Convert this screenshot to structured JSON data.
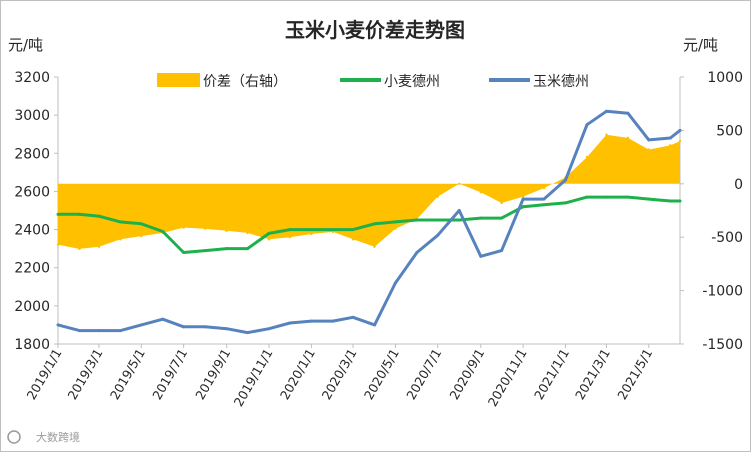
{
  "chart_data": {
    "type": "line",
    "title": "玉米小麦价差走势图",
    "y_left_unit": "元/吨",
    "y_right_unit": "元/吨",
    "y_left_range": [
      1800,
      3200
    ],
    "y_left_ticks": [
      "1800",
      "2000",
      "2200",
      "2400",
      "2600",
      "2800",
      "3000",
      "3200"
    ],
    "y_right_range": [
      -1500,
      1000
    ],
    "y_right_ticks": [
      "-1500",
      "-1000",
      "-500",
      "0",
      "500",
      "1000"
    ],
    "x_ticks": [
      "2019/1/1",
      "2019/3/1",
      "2019/5/1",
      "2019/7/1",
      "2019/9/1",
      "2019/11/1",
      "2020/1/1",
      "2020/3/1",
      "2020/5/1",
      "2020/7/1",
      "2020/9/1",
      "2020/11/1",
      "2021/1/1",
      "2021/3/1",
      "2021/5/1"
    ],
    "x_range": [
      "2019/1/1",
      "2021/6/15"
    ],
    "legend_placement": "top",
    "colors": {
      "spread": "#FFC000",
      "wheat": "#1EB04B",
      "corn": "#5682BE"
    },
    "series": [
      {
        "name": "价差（右轴）",
        "axis": "right",
        "style": "area",
        "x": [
          "2019/1/1",
          "2019/2/1",
          "2019/3/1",
          "2019/4/1",
          "2019/5/1",
          "2019/6/1",
          "2019/7/1",
          "2019/8/1",
          "2019/9/1",
          "2019/10/1",
          "2019/11/1",
          "2019/12/1",
          "2020/1/1",
          "2020/2/1",
          "2020/3/1",
          "2020/4/1",
          "2020/5/1",
          "2020/6/1",
          "2020/7/1",
          "2020/8/1",
          "2020/9/1",
          "2020/10/1",
          "2020/11/1",
          "2020/12/1",
          "2021/1/1",
          "2021/2/1",
          "2021/3/1",
          "2021/4/1",
          "2021/5/1",
          "2021/6/1",
          "2021/6/15"
        ],
        "values": [
          -570,
          -610,
          -590,
          -520,
          -490,
          -460,
          -410,
          -420,
          -440,
          -460,
          -520,
          -500,
          -470,
          -450,
          -520,
          -590,
          -420,
          -330,
          -120,
          0,
          -80,
          -180,
          -120,
          -40,
          60,
          250,
          460,
          430,
          320,
          360,
          400
        ]
      },
      {
        "name": "小麦德州",
        "axis": "left",
        "style": "line",
        "x": [
          "2019/1/1",
          "2019/2/1",
          "2019/3/1",
          "2019/4/1",
          "2019/5/1",
          "2019/6/1",
          "2019/7/1",
          "2019/8/1",
          "2019/9/1",
          "2019/10/1",
          "2019/11/1",
          "2019/12/1",
          "2020/1/1",
          "2020/2/1",
          "2020/3/1",
          "2020/4/1",
          "2020/5/1",
          "2020/6/1",
          "2020/7/1",
          "2020/8/1",
          "2020/9/1",
          "2020/10/1",
          "2020/11/1",
          "2020/12/1",
          "2021/1/1",
          "2021/2/1",
          "2021/3/1",
          "2021/4/1",
          "2021/5/1",
          "2021/6/1",
          "2021/6/15"
        ],
        "values": [
          2480,
          2480,
          2470,
          2440,
          2430,
          2390,
          2280,
          2290,
          2300,
          2300,
          2380,
          2400,
          2400,
          2400,
          2400,
          2430,
          2440,
          2450,
          2450,
          2450,
          2460,
          2460,
          2520,
          2530,
          2540,
          2570,
          2570,
          2570,
          2560,
          2550,
          2550
        ]
      },
      {
        "name": "玉米德州",
        "axis": "left",
        "style": "line",
        "x": [
          "2019/1/1",
          "2019/2/1",
          "2019/3/1",
          "2019/4/1",
          "2019/5/1",
          "2019/6/1",
          "2019/7/1",
          "2019/8/1",
          "2019/9/1",
          "2019/10/1",
          "2019/11/1",
          "2019/12/1",
          "2020/1/1",
          "2020/2/1",
          "2020/3/1",
          "2020/4/1",
          "2020/5/1",
          "2020/6/1",
          "2020/7/1",
          "2020/8/1",
          "2020/9/1",
          "2020/10/1",
          "2020/11/1",
          "2020/12/1",
          "2021/1/1",
          "2021/2/1",
          "2021/3/1",
          "2021/4/1",
          "2021/5/1",
          "2021/6/1",
          "2021/6/15"
        ],
        "values": [
          1900,
          1870,
          1870,
          1870,
          1900,
          1930,
          1890,
          1890,
          1880,
          1860,
          1880,
          1910,
          1920,
          1920,
          1940,
          1900,
          2120,
          2280,
          2370,
          2500,
          2260,
          2290,
          2560,
          2560,
          2660,
          2950,
          3020,
          3010,
          2870,
          2880,
          2920
        ]
      }
    ]
  },
  "watermark": {
    "text": "大数跨境",
    "icon": "cloud-c-logo-icon"
  }
}
